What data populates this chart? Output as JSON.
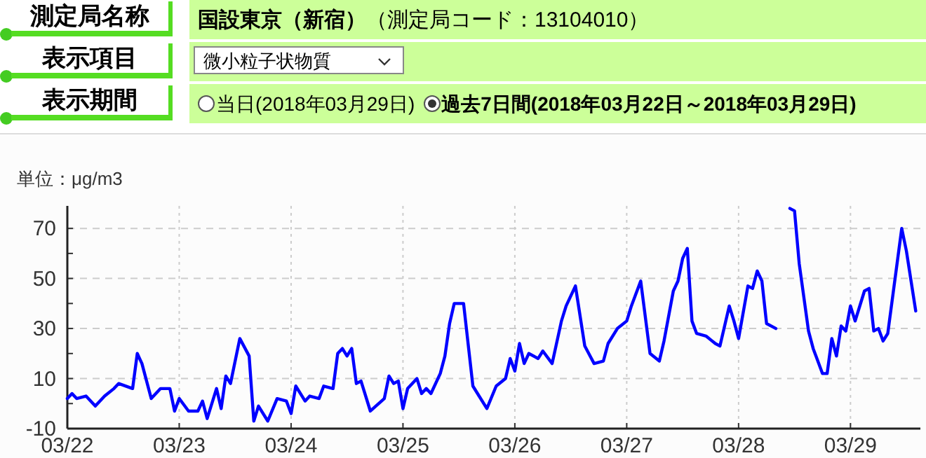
{
  "chart_data": {
    "type": "line",
    "ylabel": "単位：μg/m3",
    "annotations": [
      "測定局名称",
      "国設東京（新宿）",
      "（測定局コード：13104010）",
      "表示項目",
      "微小粒子状物質",
      "表示期間",
      "当日(2018年03月29日)",
      "過去7日間(2018年03月22日～2018年03月29日)"
    ],
    "x": [
      "2018-03-22T00:00",
      "2018-03-22T01:00",
      "2018-03-22T02:00",
      "2018-03-22T04:00",
      "2018-03-22T06:00",
      "2018-03-22T08:00",
      "2018-03-22T10:00",
      "2018-03-22T11:00",
      "2018-03-22T14:00",
      "2018-03-22T15:00",
      "2018-03-22T16:00",
      "2018-03-22T18:00",
      "2018-03-22T20:00",
      "2018-03-22T22:00",
      "2018-03-22T23:00",
      "2018-03-23T00:00",
      "2018-03-23T02:00",
      "2018-03-23T04:00",
      "2018-03-23T05:00",
      "2018-03-23T06:00",
      "2018-03-23T08:00",
      "2018-03-23T09:00",
      "2018-03-23T10:00",
      "2018-03-23T11:00",
      "2018-03-23T13:00",
      "2018-03-23T15:00",
      "2018-03-23T16:00",
      "2018-03-23T17:00",
      "2018-03-23T19:00",
      "2018-03-23T21:00",
      "2018-03-23T23:00",
      "2018-03-24T00:00",
      "2018-03-24T01:00",
      "2018-03-24T03:00",
      "2018-03-24T04:00",
      "2018-03-24T06:00",
      "2018-03-24T07:00",
      "2018-03-24T09:00",
      "2018-03-24T10:00",
      "2018-03-24T11:00",
      "2018-03-24T12:00",
      "2018-03-24T13:00",
      "2018-03-24T14:00",
      "2018-03-24T15:00",
      "2018-03-24T17:00",
      "2018-03-24T20:00",
      "2018-03-24T21:00",
      "2018-03-24T22:00",
      "2018-03-24T23:00",
      "2018-03-25T00:00",
      "2018-03-25T01:00",
      "2018-03-25T03:00",
      "2018-03-25T04:00",
      "2018-03-25T05:00",
      "2018-03-25T06:00",
      "2018-03-25T08:00",
      "2018-03-25T09:00",
      "2018-03-25T10:00",
      "2018-03-25T11:00",
      "2018-03-25T13:00",
      "2018-03-25T15:00",
      "2018-03-25T16:00",
      "2018-03-25T18:00",
      "2018-03-25T20:00",
      "2018-03-25T22:00",
      "2018-03-25T23:00",
      "2018-03-26T00:00",
      "2018-03-26T01:00",
      "2018-03-26T02:00",
      "2018-03-26T03:00",
      "2018-03-26T05:00",
      "2018-03-26T06:00",
      "2018-03-26T08:00",
      "2018-03-26T10:00",
      "2018-03-26T11:00",
      "2018-03-26T13:00",
      "2018-03-26T15:00",
      "2018-03-26T17:00",
      "2018-03-26T19:00",
      "2018-03-26T20:00",
      "2018-03-26T22:00",
      "2018-03-27T00:00",
      "2018-03-27T01:00",
      "2018-03-27T03:00",
      "2018-03-27T05:00",
      "2018-03-27T07:00",
      "2018-03-27T08:00",
      "2018-03-27T10:00",
      "2018-03-27T11:00",
      "2018-03-27T12:00",
      "2018-03-27T13:00",
      "2018-03-27T14:00",
      "2018-03-27T15:00",
      "2018-03-27T17:00",
      "2018-03-27T19:00",
      "2018-03-27T20:00",
      "2018-03-27T22:00",
      "2018-03-27T23:00",
      "2018-03-28T00:00",
      "2018-03-28T02:00",
      "2018-03-28T03:00",
      "2018-03-28T04:00",
      "2018-03-28T05:00",
      "2018-03-28T06:00",
      "2018-03-28T08:00",
      "2018-03-28T09:00",
      "2018-03-28T11:00",
      "2018-03-28T12:00",
      "2018-03-28T13:00",
      "2018-03-28T15:00",
      "2018-03-28T16:00",
      "2018-03-28T18:00",
      "2018-03-28T19:00",
      "2018-03-28T20:00",
      "2018-03-28T21:00",
      "2018-03-28T22:00",
      "2018-03-28T23:00",
      "2018-03-29T00:00",
      "2018-03-29T01:00",
      "2018-03-29T03:00",
      "2018-03-29T04:00",
      "2018-03-29T05:00",
      "2018-03-29T06:00",
      "2018-03-29T07:00",
      "2018-03-29T08:00",
      "2018-03-29T11:00",
      "2018-03-29T12:00",
      "2018-03-29T14:00"
    ],
    "series": [
      {
        "color": "#0000ff",
        "values": [
          2,
          4,
          2,
          3,
          -1,
          3,
          6,
          8,
          6,
          20,
          16,
          2,
          6,
          6,
          -3,
          2,
          -3,
          -3,
          1,
          -6,
          6,
          -2,
          11,
          8,
          26,
          19,
          -7,
          -1,
          -7,
          2,
          1,
          -4,
          7,
          1,
          3,
          2,
          7,
          6,
          20,
          22,
          19,
          22,
          8,
          9,
          -3,
          2,
          11,
          8,
          9,
          -2,
          6,
          10,
          4,
          6,
          4,
          12,
          19,
          32,
          40,
          40,
          7,
          4,
          -2,
          7,
          10,
          18,
          13,
          24,
          16,
          20,
          18,
          21,
          16,
          33,
          39,
          47,
          23,
          16,
          17,
          24,
          30,
          33,
          39,
          49,
          20,
          17,
          25,
          45,
          49,
          58,
          62,
          33,
          28,
          27,
          24,
          23,
          39,
          33,
          26,
          47,
          46,
          53,
          49,
          32,
          30,
          null,
          78,
          77,
          56,
          29,
          22,
          12,
          12,
          26,
          19,
          31,
          29,
          39,
          33,
          45,
          46,
          29,
          30,
          25,
          28,
          70,
          61,
          37
        ]
      }
    ],
    "xlim": [
      "2018-03-22T00:00",
      "2018-03-29T15:00"
    ],
    "xticks": [
      {
        "value": "2018-03-22",
        "label": "03/22"
      },
      {
        "value": "2018-03-23",
        "label": "03/23"
      },
      {
        "value": "2018-03-24",
        "label": "03/24"
      },
      {
        "value": "2018-03-25",
        "label": "03/25"
      },
      {
        "value": "2018-03-26",
        "label": "03/26"
      },
      {
        "value": "2018-03-27",
        "label": "03/27"
      },
      {
        "value": "2018-03-28",
        "label": "03/28"
      },
      {
        "value": "2018-03-29",
        "label": "03/29"
      }
    ],
    "ylim": [
      -10,
      79
    ],
    "yticks": [
      -10,
      {
        "value": 0,
        "label": null
      },
      10,
      {
        "value": 20,
        "label": null
      },
      30,
      {
        "value": 40,
        "label": null
      },
      50,
      {
        "value": 60,
        "label": null
      },
      70
    ],
    "grid": true,
    "marker": "none",
    "line_style": "solid"
  }
}
